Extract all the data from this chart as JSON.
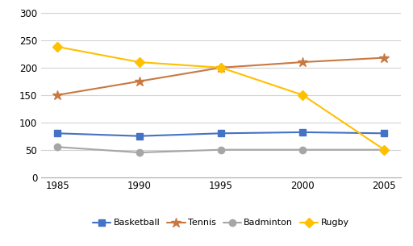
{
  "years": [
    1985,
    1990,
    1995,
    2000,
    2005
  ],
  "series": {
    "Basketball": [
      80,
      75,
      80,
      82,
      80
    ],
    "Tennis": [
      150,
      175,
      200,
      210,
      218
    ],
    "Badminton": [
      55,
      45,
      50,
      50,
      50
    ],
    "Rugby": [
      238,
      210,
      200,
      150,
      50
    ]
  },
  "colors": {
    "Basketball": "#4472C4",
    "Tennis": "#C87941",
    "Badminton": "#A6A6A6",
    "Rugby": "#FFC000"
  },
  "markers": {
    "Basketball": "s",
    "Tennis": "*",
    "Badminton": "o",
    "Rugby": "D"
  },
  "marker_sizes": {
    "Basketball": 6,
    "Tennis": 9,
    "Badminton": 6,
    "Rugby": 6
  },
  "ylim": [
    0,
    310
  ],
  "yticks": [
    0,
    50,
    100,
    150,
    200,
    250,
    300
  ],
  "background_color": "#ffffff",
  "grid_color": "#d3d3d3",
  "figsize": [
    5.12,
    3.05
  ],
  "dpi": 100
}
